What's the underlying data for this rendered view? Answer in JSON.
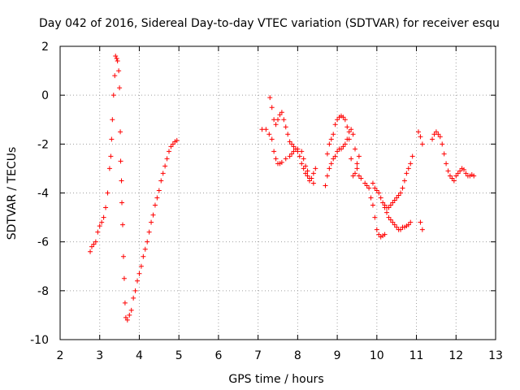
{
  "chart_data": {
    "type": "scatter",
    "title": "Day 042 of 2016, Sidereal Day-to-day VTEC variation (SDTVAR) for receiver esqu",
    "xlabel": "GPS time / hours",
    "ylabel": "SDTVAR / TECUs",
    "xlim": [
      2,
      13
    ],
    "ylim": [
      -10,
      2
    ],
    "xticks": [
      "2",
      "3",
      "4",
      "5",
      "6",
      "7",
      "8",
      "9",
      "10",
      "11",
      "12",
      "13"
    ],
    "yticks": [
      "-10",
      "-8",
      "-6",
      "-4",
      "-2",
      "0",
      "2"
    ],
    "grid": true,
    "marker": "+",
    "color": "#ff0000",
    "series": [
      {
        "name": "segment-1",
        "points": [
          [
            2.76,
            -6.4
          ],
          [
            2.8,
            -6.2
          ],
          [
            2.85,
            -6.1
          ],
          [
            2.9,
            -6.0
          ],
          [
            2.95,
            -5.6
          ],
          [
            3.0,
            -5.35
          ],
          [
            3.05,
            -5.2
          ],
          [
            3.1,
            -5.0
          ],
          [
            3.15,
            -4.6
          ],
          [
            3.2,
            -4.0
          ],
          [
            3.25,
            -3.0
          ],
          [
            3.28,
            -2.5
          ],
          [
            3.3,
            -1.8
          ],
          [
            3.32,
            -1.0
          ],
          [
            3.35,
            0.0
          ],
          [
            3.38,
            0.8
          ],
          [
            3.4,
            1.6
          ],
          [
            3.43,
            1.5
          ],
          [
            3.45,
            1.4
          ],
          [
            3.48,
            1.0
          ],
          [
            3.5,
            0.3
          ],
          [
            3.52,
            -1.5
          ],
          [
            3.53,
            -2.7
          ],
          [
            3.55,
            -3.5
          ],
          [
            3.56,
            -4.4
          ],
          [
            3.58,
            -5.3
          ],
          [
            3.6,
            -6.6
          ],
          [
            3.62,
            -7.5
          ],
          [
            3.64,
            -8.5
          ],
          [
            3.66,
            -9.1
          ],
          [
            3.7,
            -9.2
          ],
          [
            3.75,
            -9.0
          ],
          [
            3.8,
            -8.8
          ],
          [
            3.85,
            -8.3
          ],
          [
            3.9,
            -8.0
          ],
          [
            3.95,
            -7.6
          ],
          [
            4.0,
            -7.3
          ],
          [
            4.05,
            -7.0
          ],
          [
            4.1,
            -6.6
          ],
          [
            4.15,
            -6.3
          ],
          [
            4.2,
            -6.0
          ],
          [
            4.25,
            -5.6
          ],
          [
            4.3,
            -5.2
          ],
          [
            4.35,
            -4.9
          ],
          [
            4.4,
            -4.5
          ],
          [
            4.45,
            -4.2
          ],
          [
            4.5,
            -3.9
          ],
          [
            4.55,
            -3.5
          ],
          [
            4.6,
            -3.2
          ],
          [
            4.65,
            -2.9
          ],
          [
            4.7,
            -2.6
          ],
          [
            4.75,
            -2.3
          ],
          [
            4.8,
            -2.1
          ],
          [
            4.85,
            -2.0
          ],
          [
            4.9,
            -1.9
          ],
          [
            4.95,
            -1.85
          ]
        ]
      },
      {
        "name": "segment-2",
        "points": [
          [
            7.1,
            -1.4
          ],
          [
            7.2,
            -1.4
          ],
          [
            7.28,
            -1.6
          ],
          [
            7.3,
            -0.1
          ],
          [
            7.35,
            -0.5
          ],
          [
            7.4,
            -1.0
          ],
          [
            7.45,
            -1.2
          ],
          [
            7.5,
            -1.0
          ],
          [
            7.55,
            -0.8
          ],
          [
            7.6,
            -0.7
          ],
          [
            7.65,
            -1.0
          ],
          [
            7.7,
            -1.3
          ],
          [
            7.75,
            -1.6
          ],
          [
            7.8,
            -1.9
          ],
          [
            7.85,
            -2.0
          ],
          [
            7.9,
            -2.1
          ],
          [
            7.95,
            -2.2
          ],
          [
            8.0,
            -2.3
          ],
          [
            8.05,
            -2.5
          ],
          [
            8.1,
            -2.8
          ],
          [
            8.15,
            -3.0
          ],
          [
            8.2,
            -3.2
          ],
          [
            8.25,
            -3.3
          ],
          [
            8.3,
            -3.5
          ],
          [
            8.35,
            -3.4
          ],
          [
            8.4,
            -3.2
          ],
          [
            8.45,
            -3.0
          ],
          [
            7.35,
            -1.8
          ],
          [
            7.4,
            -2.3
          ],
          [
            7.45,
            -2.6
          ],
          [
            7.5,
            -2.8
          ],
          [
            7.55,
            -2.8
          ],
          [
            7.6,
            -2.75
          ],
          [
            7.7,
            -2.6
          ],
          [
            7.8,
            -2.5
          ],
          [
            7.85,
            -2.4
          ],
          [
            7.9,
            -2.3
          ],
          [
            8.0,
            -2.2
          ],
          [
            8.1,
            -2.3
          ],
          [
            8.15,
            -2.6
          ],
          [
            8.2,
            -2.9
          ],
          [
            8.25,
            -3.1
          ],
          [
            8.3,
            -3.4
          ],
          [
            8.4,
            -3.6
          ],
          [
            8.7,
            -3.7
          ],
          [
            8.75,
            -3.3
          ],
          [
            8.8,
            -3.0
          ],
          [
            8.85,
            -2.8
          ],
          [
            8.9,
            -2.6
          ],
          [
            8.95,
            -2.5
          ],
          [
            9.0,
            -2.3
          ],
          [
            9.05,
            -2.2
          ],
          [
            9.1,
            -2.2
          ],
          [
            9.15,
            -2.1
          ],
          [
            9.2,
            -2.0
          ],
          [
            8.75,
            -2.4
          ],
          [
            8.8,
            -2.0
          ],
          [
            8.85,
            -1.8
          ],
          [
            8.9,
            -1.6
          ],
          [
            8.95,
            -1.2
          ],
          [
            9.0,
            -1.0
          ],
          [
            9.05,
            -0.9
          ],
          [
            9.1,
            -0.85
          ],
          [
            9.15,
            -0.9
          ],
          [
            9.2,
            -1.0
          ],
          [
            9.25,
            -1.3
          ],
          [
            9.3,
            -1.8
          ],
          [
            9.35,
            -2.6
          ],
          [
            9.4,
            -3.3
          ],
          [
            9.45,
            -3.2
          ],
          [
            9.5,
            -2.8
          ],
          [
            9.55,
            -2.5
          ],
          [
            9.25,
            -1.8
          ],
          [
            9.3,
            -1.5
          ],
          [
            9.35,
            -1.4
          ],
          [
            9.4,
            -1.6
          ],
          [
            9.45,
            -2.2
          ],
          [
            9.5,
            -3.0
          ],
          [
            9.55,
            -3.3
          ],
          [
            9.6,
            -3.4
          ],
          [
            9.7,
            -3.6
          ],
          [
            9.75,
            -3.7
          ],
          [
            9.8,
            -3.8
          ],
          [
            9.85,
            -4.2
          ],
          [
            9.9,
            -4.5
          ],
          [
            9.95,
            -5.0
          ],
          [
            10.0,
            -5.5
          ],
          [
            10.05,
            -5.7
          ],
          [
            10.1,
            -5.8
          ],
          [
            10.15,
            -5.75
          ],
          [
            10.2,
            -5.7
          ],
          [
            9.9,
            -3.6
          ],
          [
            9.95,
            -3.8
          ],
          [
            10.0,
            -3.9
          ],
          [
            10.05,
            -4.0
          ],
          [
            10.1,
            -4.2
          ],
          [
            10.15,
            -4.4
          ],
          [
            10.2,
            -4.6
          ],
          [
            10.25,
            -4.6
          ],
          [
            10.3,
            -4.6
          ],
          [
            10.35,
            -4.5
          ],
          [
            10.4,
            -4.4
          ],
          [
            10.45,
            -4.3
          ],
          [
            10.5,
            -4.2
          ],
          [
            10.55,
            -4.1
          ],
          [
            10.6,
            -4.0
          ],
          [
            10.65,
            -3.8
          ],
          [
            10.7,
            -3.5
          ],
          [
            10.75,
            -3.2
          ],
          [
            10.8,
            -3.0
          ],
          [
            10.85,
            -2.8
          ],
          [
            10.9,
            -2.5
          ],
          [
            10.2,
            -4.5
          ],
          [
            10.25,
            -4.8
          ],
          [
            10.3,
            -5.0
          ],
          [
            10.35,
            -5.1
          ],
          [
            10.4,
            -5.2
          ],
          [
            10.45,
            -5.3
          ],
          [
            10.5,
            -5.4
          ],
          [
            10.55,
            -5.5
          ],
          [
            10.6,
            -5.5
          ],
          [
            10.65,
            -5.4
          ],
          [
            10.7,
            -5.4
          ],
          [
            10.75,
            -5.35
          ],
          [
            10.8,
            -5.3
          ],
          [
            10.85,
            -5.2
          ],
          [
            11.1,
            -5.2
          ],
          [
            11.15,
            -5.5
          ]
        ]
      },
      {
        "name": "segment-3",
        "points": [
          [
            11.05,
            -1.5
          ],
          [
            11.1,
            -1.7
          ],
          [
            11.15,
            -2.0
          ],
          [
            11.4,
            -1.8
          ],
          [
            11.45,
            -1.6
          ],
          [
            11.5,
            -1.5
          ],
          [
            11.55,
            -1.6
          ],
          [
            11.6,
            -1.7
          ],
          [
            11.65,
            -2.0
          ],
          [
            11.7,
            -2.4
          ],
          [
            11.75,
            -2.8
          ],
          [
            11.8,
            -3.1
          ],
          [
            11.85,
            -3.3
          ],
          [
            11.9,
            -3.4
          ],
          [
            11.95,
            -3.5
          ],
          [
            12.0,
            -3.3
          ],
          [
            12.05,
            -3.2
          ],
          [
            12.1,
            -3.1
          ],
          [
            12.15,
            -3.0
          ],
          [
            12.2,
            -3.05
          ],
          [
            12.25,
            -3.2
          ],
          [
            12.3,
            -3.3
          ],
          [
            12.35,
            -3.3
          ],
          [
            12.4,
            -3.25
          ],
          [
            12.45,
            -3.3
          ]
        ]
      }
    ]
  }
}
